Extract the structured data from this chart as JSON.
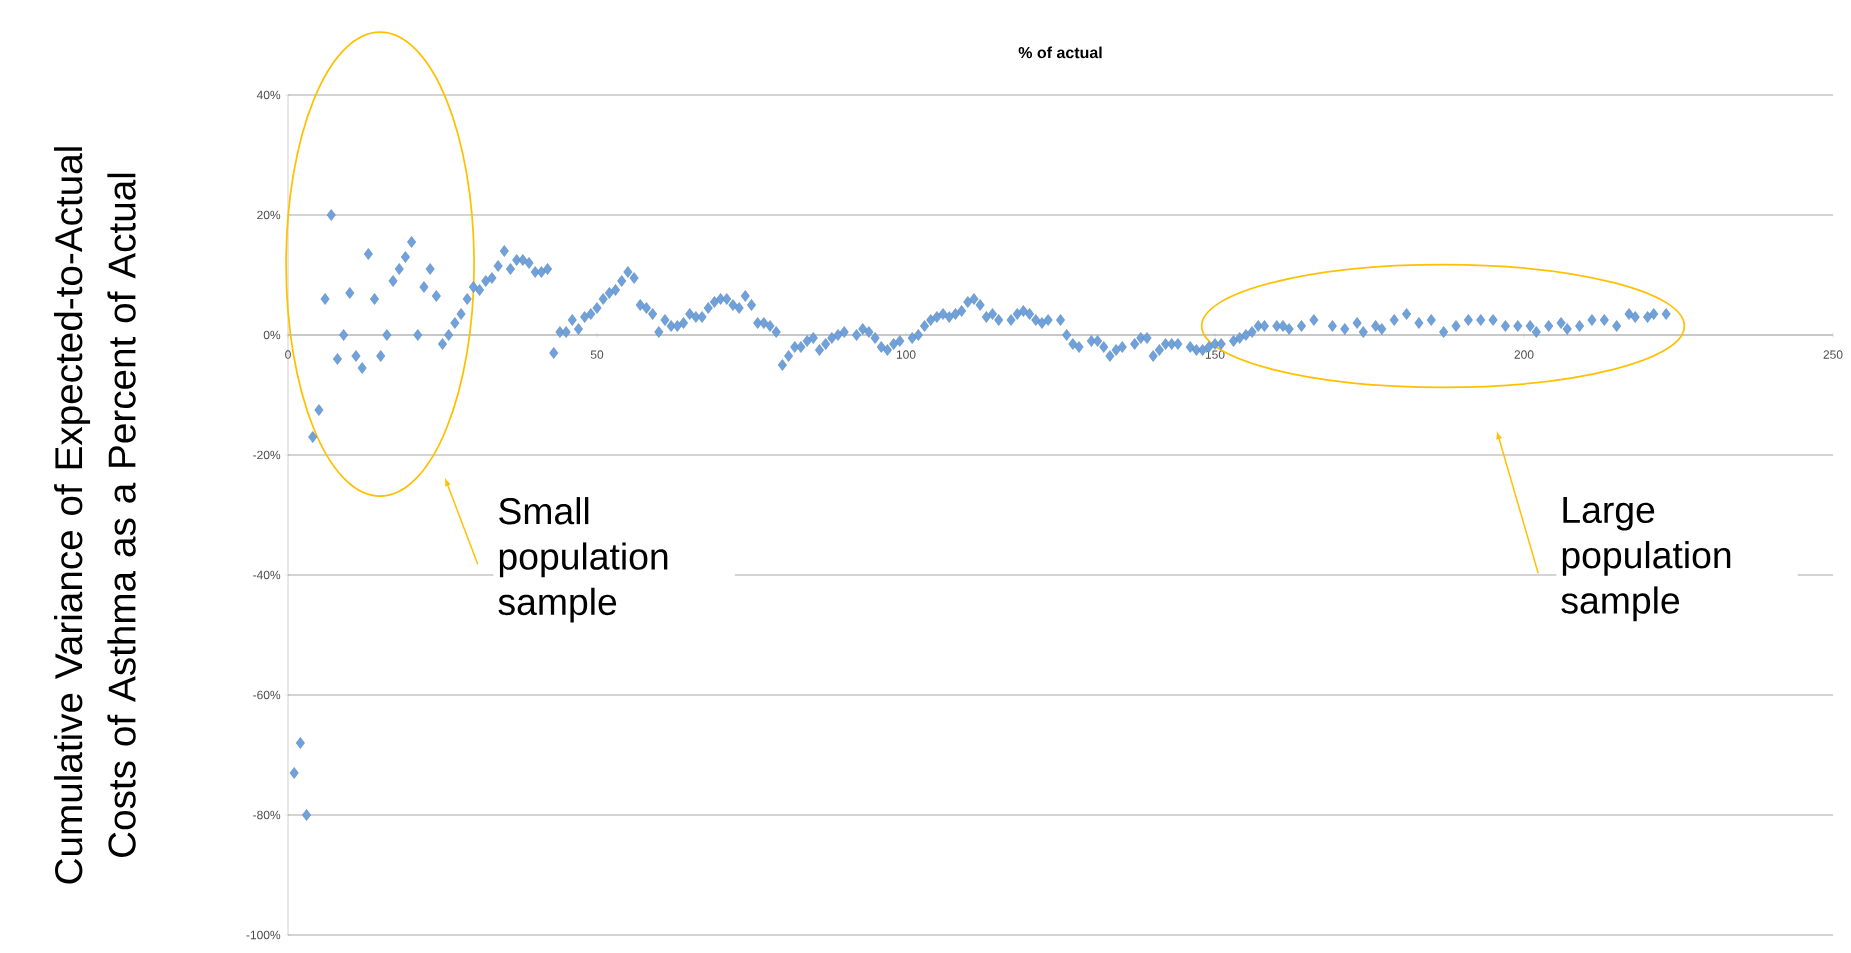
{
  "chart_data": {
    "type": "scatter",
    "title": "% of actual",
    "ylabel": "Cumulative Variance of Expected-to-Actual Costs of Asthma as a Percent of Actual",
    "annotations": [
      "Small population sample",
      "Large population sample"
    ],
    "x": [
      1,
      2,
      3,
      4,
      5,
      6,
      7,
      8,
      9,
      10,
      11,
      12,
      13,
      14,
      15,
      16,
      17,
      18,
      19,
      20,
      21,
      22,
      23,
      24,
      25,
      26,
      27,
      28,
      29,
      30,
      31,
      32,
      33,
      34,
      35,
      36,
      37,
      38,
      39,
      40,
      41,
      42,
      43,
      44,
      45,
      46,
      47,
      48,
      49,
      50,
      51,
      52,
      53,
      54,
      55,
      56,
      57,
      58,
      59,
      60,
      61,
      62,
      63,
      64,
      65,
      66,
      67,
      68,
      69,
      70,
      71,
      72,
      73,
      74,
      75,
      76,
      77,
      78,
      79,
      80,
      81,
      82,
      83,
      84,
      85,
      86,
      87,
      88,
      89,
      90,
      92,
      93,
      94,
      95,
      96,
      97,
      98,
      99,
      101,
      102,
      103,
      104,
      105,
      106,
      107,
      108,
      109,
      110,
      111,
      112,
      113,
      114,
      115,
      117,
      118,
      119,
      120,
      121,
      122,
      123,
      125,
      126,
      127,
      128,
      130,
      131,
      132,
      133,
      134,
      135,
      137,
      138,
      139,
      140,
      141,
      142,
      143,
      144,
      146,
      147,
      148,
      149,
      150,
      151,
      153,
      154,
      155,
      156,
      157,
      158,
      160,
      161,
      162,
      164,
      166,
      169,
      171,
      173,
      174,
      176,
      177,
      179,
      181,
      183,
      185,
      187,
      189,
      191,
      193,
      195,
      197,
      199,
      201,
      202,
      204,
      206,
      207,
      209,
      211,
      213,
      215,
      217,
      218,
      220,
      221,
      223
    ],
    "values": [
      -73,
      -68,
      -80,
      -17,
      -12.5,
      6,
      20,
      -4,
      0,
      7,
      -3.5,
      -5.5,
      13.5,
      6,
      -3.5,
      0,
      9,
      11,
      13,
      15.5,
      0,
      8,
      11,
      6.5,
      -1.5,
      0,
      2,
      3.5,
      6,
      8,
      7.5,
      9,
      9.5,
      11.5,
      14,
      11,
      12.5,
      12.5,
      12,
      10.5,
      10.5,
      11,
      -3,
      0.5,
      0.5,
      2.5,
      1,
      3,
      3.5,
      4.5,
      6,
      7,
      7.5,
      9,
      10.5,
      9.5,
      5,
      4.5,
      3.5,
      0.5,
      2.5,
      1.5,
      1.5,
      2,
      3.5,
      3,
      3,
      4.5,
      5.5,
      6,
      6,
      5,
      4.5,
      6.5,
      5,
      2,
      2,
      1.5,
      0.5,
      -5,
      -3.5,
      -2,
      -2,
      -1,
      -0.5,
      -2.5,
      -1.5,
      -0.5,
      0,
      0.5,
      0,
      1,
      0.5,
      -0.5,
      -2,
      -2.5,
      -1.5,
      -1,
      -0.5,
      0,
      1.5,
      2.5,
      3,
      3.5,
      3,
      3.5,
      4,
      5.5,
      6,
      5,
      3,
      3.5,
      2.5,
      2.5,
      3.5,
      4,
      3.5,
      2.5,
      2,
      2.5,
      2.5,
      0,
      -1.5,
      -2,
      -1,
      -1,
      -2,
      -3.5,
      -2.5,
      -2,
      -1.5,
      -0.5,
      -0.5,
      -3.5,
      -2.5,
      -1.5,
      -1.5,
      -1.5,
      -2,
      -2.5,
      -2.5,
      -2,
      -1.5,
      -1.5,
      -1,
      -0.5,
      0,
      0.5,
      1.5,
      1.5,
      1.5,
      1.5,
      1,
      1.5,
      2.5,
      1.5,
      1,
      2,
      0.5,
      1.5,
      1,
      2.5,
      3.5,
      2,
      2.5,
      0.5,
      1.5,
      2.5,
      2.5,
      2.5,
      1.5,
      1.5,
      1.5,
      0.5,
      1.5,
      2,
      1,
      1.5,
      2.5,
      2.5,
      1.5,
      3.5,
      3,
      3,
      3.5,
      3.5
    ],
    "color": "#6fa2dc",
    "marker": "diamond",
    "grid": "y",
    "xlim": [
      0,
      250
    ],
    "ylim": [
      -100,
      40
    ],
    "xticks": [
      0,
      50,
      100,
      150,
      200,
      250
    ],
    "yticks": [
      {
        "value": -100,
        "label": "-100%"
      },
      {
        "value": -80,
        "label": "-80%"
      },
      {
        "value": -60,
        "label": "-60%"
      },
      {
        "value": -40,
        "label": "-40%"
      },
      {
        "value": -20,
        "label": "-20%"
      },
      {
        "value": 0,
        "label": "0%"
      },
      {
        "value": 20,
        "label": "20%"
      },
      {
        "value": 40,
        "label": "40%"
      }
    ]
  }
}
